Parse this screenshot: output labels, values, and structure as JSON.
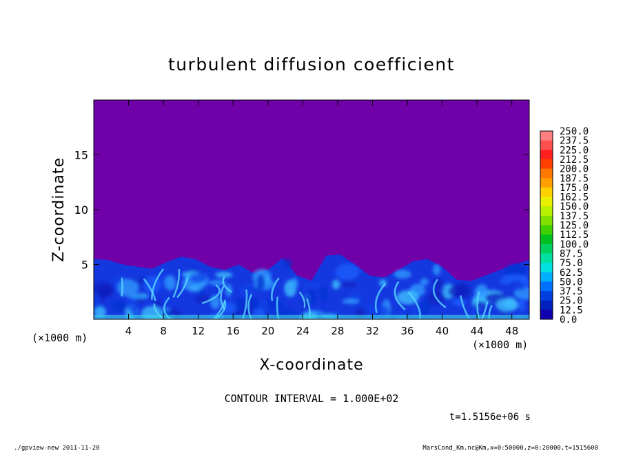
{
  "chart_data": {
    "type": "heatmap",
    "title": "turbulent diffusion coefficient",
    "xlabel": "X-coordinate",
    "ylabel": "Z-coordinate",
    "x_unit": "(×1000 m)",
    "y_unit": "(×1000 m)",
    "xlim": [
      0,
      50
    ],
    "ylim": [
      0,
      20
    ],
    "x_ticks": [
      4,
      8,
      12,
      16,
      20,
      24,
      28,
      32,
      36,
      40,
      44,
      48
    ],
    "y_ticks": [
      5,
      10,
      15
    ],
    "contour_interval": "CONTOUR INTERVAL = 1.000E+02",
    "time_label": "t=1.5156e+06 s",
    "colorbar": {
      "levels": [
        "250.0",
        "237.5",
        "225.0",
        "212.5",
        "200.0",
        "187.5",
        "175.0",
        "162.5",
        "150.0",
        "137.5",
        "125.0",
        "112.5",
        "100.0",
        "87.5",
        "75.0",
        "62.5",
        "50.0",
        "37.5",
        "25.0",
        "12.5",
        "0.0"
      ],
      "colors": [
        "#ff8080",
        "#ff5050",
        "#ff2020",
        "#ff4000",
        "#ff7800",
        "#ffa000",
        "#ffd000",
        "#e8f000",
        "#b8f000",
        "#80e000",
        "#40d000",
        "#00c020",
        "#00d060",
        "#00e0a0",
        "#00e0e0",
        "#00b0ff",
        "#0070ff",
        "#0040e0",
        "#0020c0",
        "#1000b0",
        "#7000a8"
      ]
    },
    "background_color": "#7000a8",
    "cloud_top_km": [
      5.5,
      5.4,
      5.0,
      4.8,
      4.6,
      5.2,
      5.7,
      5.5,
      4.8,
      4.5,
      5.0,
      4.2,
      4.5,
      5.6,
      4.0,
      3.5,
      5.8,
      5.9,
      5.0,
      4.0,
      3.8,
      4.5,
      5.3,
      5.5,
      4.8,
      3.6,
      3.5,
      4.0,
      4.5,
      5.0,
      5.4
    ]
  },
  "footer": {
    "left": "./gpview-new  2011-11-20",
    "right": "MarsCond_Km.nc@Km,x=0:50000,z=0:20000,t=1515600"
  }
}
